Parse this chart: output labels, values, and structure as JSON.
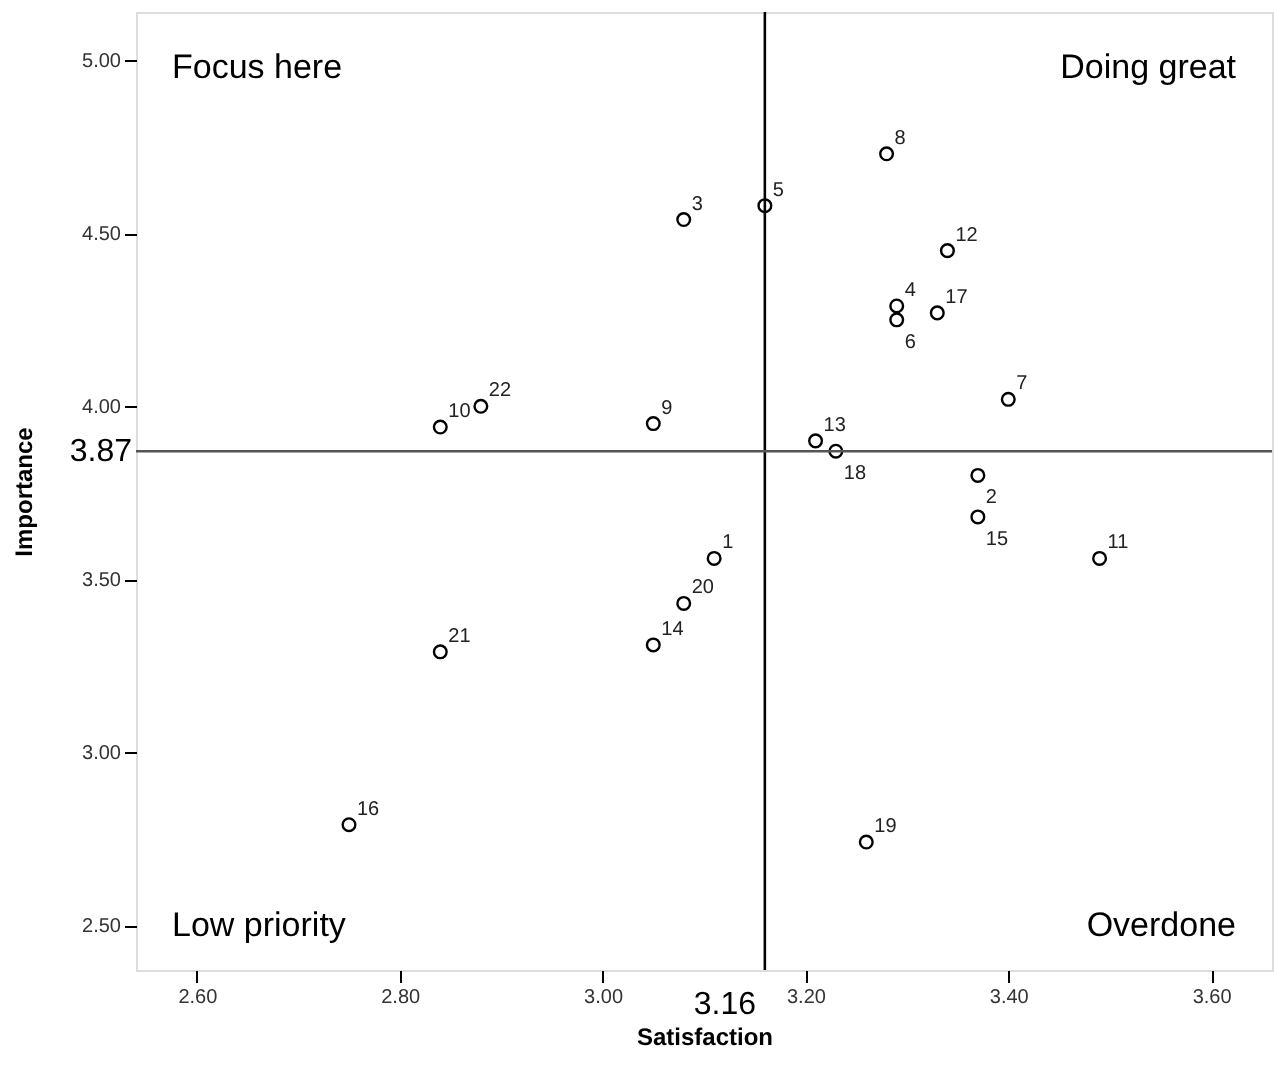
{
  "chart_data": {
    "type": "scatter",
    "xlabel": "Satisfaction",
    "ylabel": "Importance",
    "x": [
      3.11,
      3.37,
      3.08,
      3.29,
      3.16,
      3.29,
      3.4,
      3.28,
      3.05,
      2.84,
      3.49,
      3.34,
      3.21,
      3.05,
      3.37,
      2.75,
      3.33,
      3.23,
      3.26,
      3.08,
      2.84,
      2.88
    ],
    "series": [
      {
        "color": "#000000",
        "values": [
          3.56,
          3.8,
          4.54,
          4.29,
          4.58,
          4.25,
          4.02,
          4.73,
          3.95,
          3.94,
          3.56,
          4.45,
          3.9,
          3.31,
          3.68,
          2.79,
          4.27,
          3.87,
          2.74,
          3.43,
          3.29,
          4.0
        ]
      }
    ],
    "xlim": [
      2.54,
      3.66
    ],
    "ylim": [
      2.37,
      5.14
    ],
    "xticks": [
      {
        "value": 2.6,
        "label": "2.60"
      },
      {
        "value": 2.8,
        "label": "2.80"
      },
      {
        "value": 3.0,
        "label": "3.00"
      },
      {
        "value": 3.2,
        "label": "3.20"
      },
      {
        "value": 3.4,
        "label": "3.40"
      },
      {
        "value": 3.6,
        "label": "3.60"
      }
    ],
    "yticks": [
      {
        "value": 2.5,
        "label": "2.50"
      },
      {
        "value": 3.0,
        "label": "3.00"
      },
      {
        "value": 3.5,
        "label": "3.50"
      },
      {
        "value": 4.0,
        "label": "4.00"
      },
      {
        "value": 4.5,
        "label": "4.50"
      },
      {
        "value": 5.0,
        "label": "5.00"
      }
    ],
    "ref_lines": [
      {
        "axis": "x",
        "value": 3.16,
        "label": "3.16",
        "color": "#000000"
      },
      {
        "axis": "y",
        "value": 3.87,
        "label": "3.87",
        "color": "#555555"
      }
    ],
    "annotations": [
      "Focus here",
      "Doing great",
      "Low priority",
      "Overdone",
      {
        "text": "1",
        "x": 3.11,
        "y": 3.56
      },
      {
        "text": "2",
        "x": 3.37,
        "y": 3.8
      },
      {
        "text": "3",
        "x": 3.08,
        "y": 4.54
      },
      {
        "text": "4",
        "x": 3.29,
        "y": 4.29
      },
      {
        "text": "5",
        "x": 3.16,
        "y": 4.58
      },
      {
        "text": "6",
        "x": 3.29,
        "y": 4.25
      },
      {
        "text": "7",
        "x": 3.4,
        "y": 4.02
      },
      {
        "text": "8",
        "x": 3.28,
        "y": 4.73
      },
      {
        "text": "9",
        "x": 3.05,
        "y": 3.95
      },
      {
        "text": "10",
        "x": 2.84,
        "y": 3.94
      },
      {
        "text": "11",
        "x": 3.49,
        "y": 3.56
      },
      {
        "text": "12",
        "x": 3.34,
        "y": 4.45
      },
      {
        "text": "13",
        "x": 3.21,
        "y": 3.9
      },
      {
        "text": "14",
        "x": 3.05,
        "y": 3.31
      },
      {
        "text": "15",
        "x": 3.37,
        "y": 3.68
      },
      {
        "text": "16",
        "x": 2.75,
        "y": 2.79
      },
      {
        "text": "17",
        "x": 3.33,
        "y": 4.27
      },
      {
        "text": "18",
        "x": 3.23,
        "y": 3.87
      },
      {
        "text": "19",
        "x": 3.26,
        "y": 2.74
      },
      {
        "text": "20",
        "x": 3.08,
        "y": 3.43
      },
      {
        "text": "21",
        "x": 2.84,
        "y": 3.29
      },
      {
        "text": "22",
        "x": 2.88,
        "y": 4.0
      }
    ],
    "marker": "circle",
    "grid": false
  }
}
